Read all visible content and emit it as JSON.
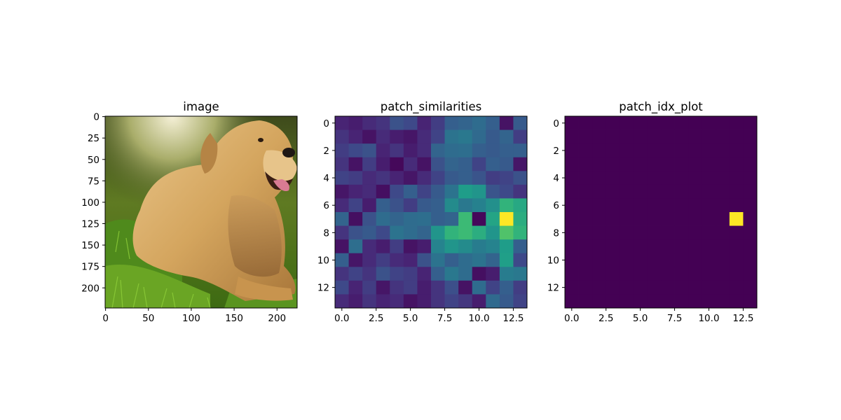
{
  "chart_data": [
    {
      "type": "image",
      "title": "image",
      "image_semantic": "golden retriever lying on grass in sunlight",
      "xlim": [
        -0.5,
        223.5
      ],
      "ylim": [
        223.5,
        -0.5
      ],
      "xticks": [
        0,
        50,
        100,
        150,
        200
      ],
      "yticks": [
        0,
        25,
        50,
        75,
        100,
        125,
        150,
        175,
        200
      ]
    },
    {
      "type": "heatmap",
      "title": "patch_similarities",
      "colormap": "viridis",
      "vmin": 0,
      "vmax": 1,
      "xlim": [
        -0.5,
        13.5
      ],
      "ylim": [
        13.5,
        -0.5
      ],
      "xticks": [
        "0.0",
        "2.5",
        "5.0",
        "7.5",
        "10.0",
        "12.5"
      ],
      "yticks": [
        "0",
        "2",
        "4",
        "6",
        "8",
        "10",
        "12"
      ],
      "values": [
        [
          0.1,
          0.08,
          0.12,
          0.15,
          0.25,
          0.22,
          0.1,
          0.18,
          0.3,
          0.32,
          0.35,
          0.3,
          0.05,
          0.28
        ],
        [
          0.15,
          0.1,
          0.05,
          0.12,
          0.08,
          0.06,
          0.12,
          0.2,
          0.38,
          0.4,
          0.34,
          0.28,
          0.32,
          0.18
        ],
        [
          0.18,
          0.22,
          0.25,
          0.1,
          0.15,
          0.08,
          0.12,
          0.32,
          0.35,
          0.36,
          0.3,
          0.28,
          0.3,
          0.3
        ],
        [
          0.15,
          0.05,
          0.18,
          0.08,
          0.02,
          0.12,
          0.05,
          0.25,
          0.32,
          0.3,
          0.2,
          0.3,
          0.28,
          0.06
        ],
        [
          0.2,
          0.18,
          0.12,
          0.15,
          0.1,
          0.06,
          0.12,
          0.2,
          0.28,
          0.3,
          0.26,
          0.18,
          0.2,
          0.25
        ],
        [
          0.06,
          0.1,
          0.12,
          0.04,
          0.22,
          0.3,
          0.2,
          0.28,
          0.38,
          0.55,
          0.52,
          0.26,
          0.22,
          0.15
        ],
        [
          0.12,
          0.2,
          0.08,
          0.3,
          0.25,
          0.18,
          0.28,
          0.3,
          0.48,
          0.4,
          0.44,
          0.5,
          0.65,
          0.6
        ],
        [
          0.32,
          0.04,
          0.25,
          0.35,
          0.32,
          0.35,
          0.36,
          0.3,
          0.32,
          0.68,
          0.02,
          0.58,
          1.0,
          0.62
        ],
        [
          0.15,
          0.25,
          0.28,
          0.22,
          0.38,
          0.35,
          0.32,
          0.52,
          0.65,
          0.68,
          0.62,
          0.52,
          0.72,
          0.65
        ],
        [
          0.05,
          0.36,
          0.12,
          0.08,
          0.18,
          0.05,
          0.08,
          0.45,
          0.52,
          0.48,
          0.42,
          0.45,
          0.55,
          0.3
        ],
        [
          0.3,
          0.06,
          0.12,
          0.18,
          0.12,
          0.1,
          0.25,
          0.38,
          0.3,
          0.35,
          0.38,
          0.32,
          0.56,
          0.22
        ],
        [
          0.15,
          0.2,
          0.15,
          0.25,
          0.2,
          0.18,
          0.1,
          0.3,
          0.4,
          0.35,
          0.04,
          0.08,
          0.42,
          0.4
        ],
        [
          0.22,
          0.1,
          0.18,
          0.06,
          0.15,
          0.18,
          0.08,
          0.15,
          0.24,
          0.05,
          0.35,
          0.2,
          0.3,
          0.18
        ],
        [
          0.12,
          0.08,
          0.15,
          0.1,
          0.12,
          0.05,
          0.08,
          0.15,
          0.2,
          0.16,
          0.08,
          0.34,
          0.28,
          0.2
        ]
      ]
    },
    {
      "type": "heatmap",
      "title": "patch_idx_plot",
      "colormap": "viridis",
      "vmin": 0,
      "vmax": 1,
      "xlim": [
        -0.5,
        13.5
      ],
      "ylim": [
        13.5,
        -0.5
      ],
      "xticks": [
        "0.0",
        "2.5",
        "5.0",
        "7.5",
        "10.0",
        "12.5"
      ],
      "yticks": [
        "0",
        "2",
        "4",
        "6",
        "8",
        "10",
        "12"
      ],
      "highlight_cell": {
        "row": 7,
        "col": 12,
        "value": 1
      },
      "background_value": 0
    }
  ]
}
